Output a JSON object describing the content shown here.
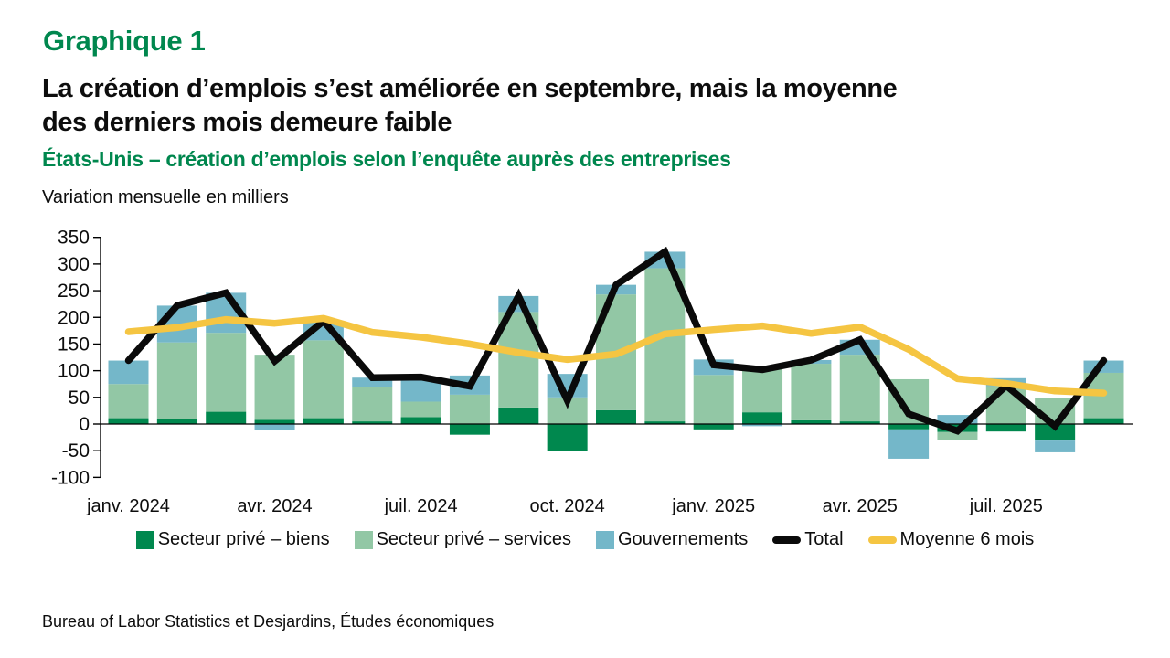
{
  "header": {
    "graph_number": "Graphique 1",
    "title_line1": "La création d’emplois s’est améliorée en septembre, mais la moyenne",
    "title_line2": "des derniers mois demeure faible",
    "subtitle": "États-Unis – création d’emplois selon l’enquête auprès des entreprises",
    "unit_label": "Variation mensuelle en milliers"
  },
  "chart_data": {
    "type": "bar",
    "stacked": true,
    "months": [
      "janv. 2024",
      "févr. 2024",
      "mars 2024",
      "avr. 2024",
      "mai 2024",
      "juin 2024",
      "juil. 2024",
      "août 2024",
      "sept. 2024",
      "oct. 2024",
      "nov. 2024",
      "déc. 2024",
      "janv. 2025",
      "févr. 2025",
      "mars 2025",
      "avr. 2025",
      "mai 2025",
      "juin 2025",
      "juil. 2025",
      "août 2025",
      "sept. 2025"
    ],
    "x_tick_labels": [
      "janv. 2024",
      "avr. 2024",
      "juil. 2024",
      "oct. 2024",
      "janv. 2025",
      "avr. 2025",
      "juil. 2025"
    ],
    "x_tick_step": 3,
    "ylim": [
      -100,
      350
    ],
    "y_ticks": [
      350,
      300,
      250,
      200,
      150,
      100,
      50,
      0,
      -50,
      -100
    ],
    "grid": "zero-line-only",
    "legend_position": "bottom",
    "series": [
      {
        "name": "Secteur privé – biens",
        "type": "bar",
        "color": "#00884E",
        "values": [
          11,
          10,
          23,
          8,
          11,
          5,
          13,
          -20,
          31,
          -50,
          26,
          5,
          -10,
          22,
          7,
          5,
          -10,
          -15,
          -14,
          -31,
          11
        ]
      },
      {
        "name": "Secteur privé – services",
        "type": "bar",
        "color": "#92C7A5",
        "values": [
          64,
          143,
          148,
          122,
          146,
          64,
          29,
          55,
          179,
          50,
          217,
          287,
          92,
          84,
          106,
          125,
          84,
          -15,
          71,
          49,
          85
        ]
      },
      {
        "name": "Gouvernements",
        "type": "bar",
        "color": "#74B7C9",
        "values": [
          44,
          69,
          75,
          -12,
          36,
          18,
          46,
          36,
          30,
          44,
          18,
          31,
          29,
          -4,
          7,
          28,
          -55,
          17,
          15,
          -22,
          23
        ]
      },
      {
        "name": "Total",
        "type": "line",
        "color": "#0A0A0A",
        "values": [
          119,
          222,
          246,
          118,
          193,
          87,
          88,
          71,
          240,
          44,
          261,
          323,
          111,
          102,
          120,
          158,
          19,
          -13,
          72,
          -4,
          119
        ]
      },
      {
        "name": "Moyenne 6 mois",
        "type": "line",
        "color": "#F5C542",
        "values": [
          173,
          181,
          196,
          189,
          198,
          172,
          163,
          150,
          134,
          121,
          131,
          169,
          177,
          184,
          170,
          182,
          140,
          85,
          76,
          62,
          58
        ]
      }
    ]
  },
  "legend": {
    "items": [
      {
        "label": "Secteur privé – biens",
        "swatch": "square",
        "color": "#00884E"
      },
      {
        "label": "Secteur privé – services",
        "swatch": "square",
        "color": "#92C7A5"
      },
      {
        "label": "Gouvernements",
        "swatch": "square",
        "color": "#74B7C9"
      },
      {
        "label": "Total",
        "swatch": "line",
        "color": "#0A0A0A"
      },
      {
        "label": "Moyenne 6 mois",
        "swatch": "line",
        "color": "#F5C542"
      }
    ]
  },
  "source": "Bureau of Labor Statistics et Desjardins, Études économiques",
  "colors": {
    "accent_green": "#00874E",
    "text": "#0d0d0d",
    "axis": "#000000"
  }
}
